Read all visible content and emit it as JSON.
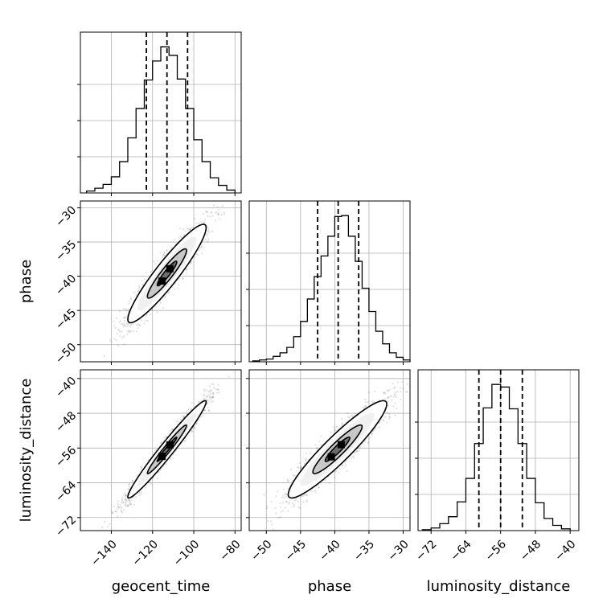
{
  "chart_data": {
    "type": "corner",
    "parameters": [
      "geocent_time",
      "phase",
      "luminosity_distance"
    ],
    "axis_labels": {
      "geocent_time": "geocent_time",
      "phase": "phase",
      "luminosity_distance": "luminosity_distance"
    },
    "ranges": {
      "geocent_time": [
        -155,
        -77
      ],
      "phase": [
        -52.5,
        -29.0
      ],
      "luminosity_distance": [
        -75,
        -38
      ]
    },
    "ticks": {
      "geocent_time": [
        -140,
        -120,
        -100,
        -80
      ],
      "phase": [
        -50,
        -45,
        -40,
        -35,
        -30
      ],
      "luminosity_distance": [
        -72,
        -64,
        -56,
        -48,
        -40
      ]
    },
    "tick_labels": {
      "geocent_time": [
        "−140",
        "−120",
        "−100",
        "−80"
      ],
      "phase": [
        "−50",
        "−45",
        "−40",
        "−35",
        "−30"
      ],
      "luminosity_distance": [
        "−72",
        "−64",
        "−56",
        "−48",
        "−40"
      ]
    },
    "quantiles": {
      "geocent_time": [
        -123,
        -113,
        -103
      ],
      "phase": [
        -42.5,
        -39.5,
        -36.5
      ],
      "luminosity_distance": [
        -61,
        -56,
        -51
      ]
    },
    "histograms": {
      "geocent_time": {
        "edges": [
          -152,
          -148,
          -144,
          -140,
          -136,
          -132,
          -128,
          -124,
          -120,
          -116,
          -112,
          -108,
          -104,
          -100,
          -96,
          -92,
          -88,
          -84,
          -80
        ],
        "counts": [
          2,
          5,
          9,
          17,
          33,
          58,
          89,
          119,
          139,
          154,
          145,
          120,
          89,
          56,
          33,
          16,
          8,
          3
        ]
      },
      "phase": {
        "edges": [
          -52,
          -51,
          -50,
          -49,
          -48,
          -47,
          -46,
          -45,
          -44,
          -43,
          -42,
          -41,
          -40,
          -39,
          -38,
          -37,
          -36,
          -35,
          -34,
          -33,
          -32,
          -31,
          -30,
          -29
        ],
        "counts": [
          1,
          2,
          3,
          6,
          10,
          16,
          28,
          45,
          70,
          95,
          118,
          140,
          162,
          163,
          140,
          112,
          82,
          56,
          34,
          20,
          10,
          5,
          2
        ]
      },
      "luminosity_distance": {
        "edges": [
          -74,
          -72,
          -70,
          -68,
          -66,
          -64,
          -62,
          -60,
          -58,
          -56,
          -54,
          -52,
          -50,
          -48,
          -46,
          -44,
          -42,
          -40
        ],
        "counts": [
          1,
          3,
          8,
          16,
          33,
          60,
          100,
          141,
          168,
          165,
          140,
          100,
          60,
          32,
          14,
          6,
          2
        ]
      }
    },
    "density_2d": [
      {
        "x": "geocent_time",
        "y": "phase",
        "mean": [
          -113,
          -39.6
        ],
        "sd": [
          9.5,
          3.6
        ],
        "rho": 0.93,
        "n_points": 1800,
        "contour_levels_sigma": [
          0.5,
          1.0,
          1.5,
          2.0
        ]
      },
      {
        "x": "geocent_time",
        "y": "luminosity_distance",
        "mean": [
          -113,
          -56.3
        ],
        "sd": [
          9.5,
          5.6
        ],
        "rho": 0.975,
        "n_points": 1800,
        "contour_levels_sigma": [
          0.5,
          1.0,
          1.5,
          2.0
        ]
      },
      {
        "x": "phase",
        "y": "luminosity_distance",
        "mean": [
          -39.6,
          -56.3
        ],
        "sd": [
          3.6,
          5.6
        ],
        "rho": 0.93,
        "n_points": 1800,
        "contour_levels_sigma": [
          0.5,
          1.0,
          1.5,
          2.0
        ]
      }
    ],
    "grid": true,
    "colors": {
      "line": "#000000",
      "grid": "#b0b0b0",
      "points": "#000000",
      "density_ramp": [
        "#ffffff",
        "#f0f0f0",
        "#c8c8c8",
        "#6e6e6e",
        "#000000"
      ]
    }
  }
}
